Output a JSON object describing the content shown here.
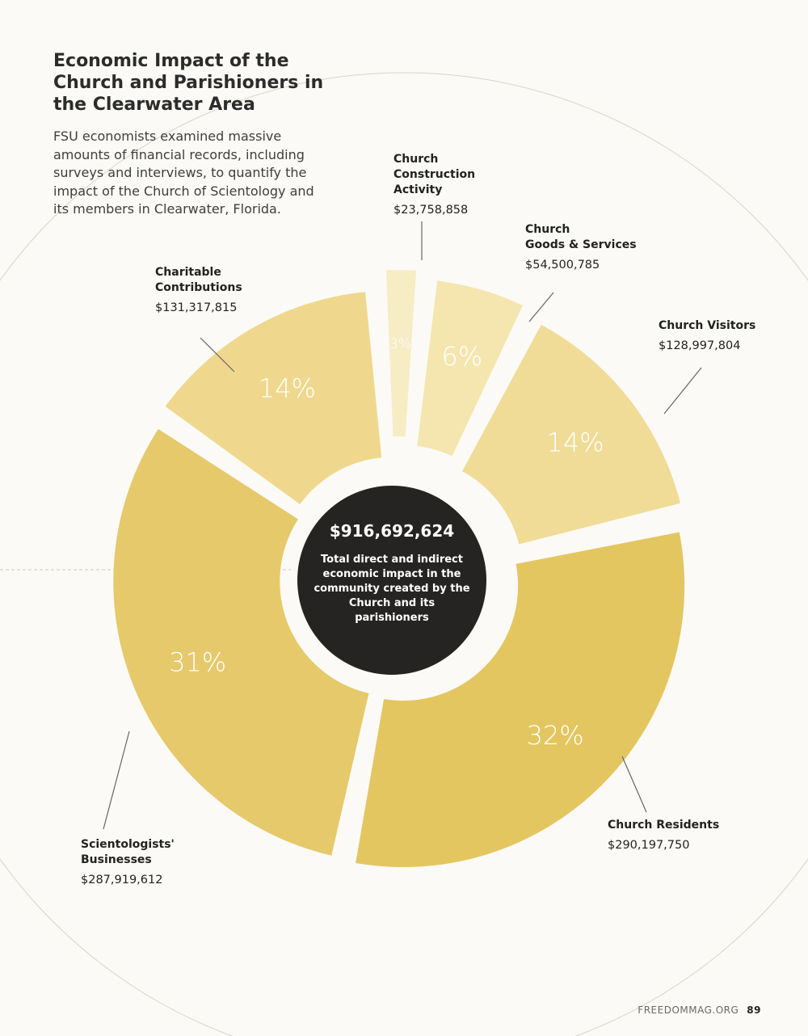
{
  "title": "Economic Impact of the Church and Parishioners in the Clearwater Area",
  "subtitle": "FSU economists examined massive amounts of financial records, including surveys and interviews, to quantify the impact of the Church of Scientology and its members in Clearwater, Florida.",
  "center": {
    "total": "$916,692,624",
    "description": "Total direct and indirect economic impact in the community created by the Church and its parishioners"
  },
  "footer": {
    "site": "FREEDOMMAG.ORG",
    "page_number": "89"
  },
  "chart_data": {
    "type": "pie",
    "variant": "donut",
    "total": 916692624,
    "categories": [
      "Church Construction Activity",
      "Church Goods & Services",
      "Church Visitors",
      "Church Residents",
      "Scientologists' Businesses",
      "Charitable Contributions"
    ],
    "values": [
      23758858,
      54500785,
      128997804,
      290197750,
      287919612,
      131317815
    ],
    "amount_labels": [
      "$23,758,858",
      "$54,500,785",
      "$128,997,804",
      "$290,197,750",
      "$287,919,612",
      "$131,317,815"
    ],
    "percent_labels": [
      "3%",
      "6%",
      "14%",
      "32%",
      "31%",
      "14%"
    ],
    "display_names": [
      "Church\nConstruction\nActivity",
      "Church\nGoods & Services",
      "Church Visitors",
      "Church Residents",
      "Scientologists'\nBusinesses",
      "Charitable\nContributions"
    ],
    "colors": [
      "#f6edc4",
      "#f4e6ae",
      "#f0dc97",
      "#e4c661",
      "#e6c96b",
      "#efd88e"
    ],
    "center_color": "#262422",
    "percent_label_color": "#ffffff"
  }
}
